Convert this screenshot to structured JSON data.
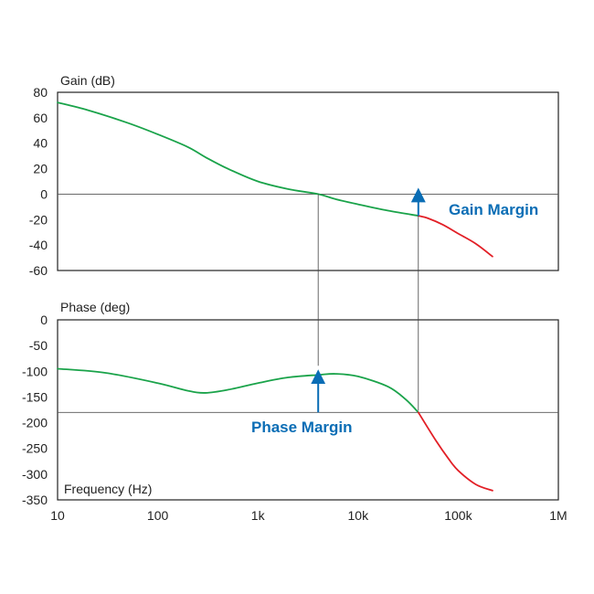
{
  "chart_data": [
    {
      "type": "line",
      "ylabel": "Gain (dB)",
      "xscale": "log",
      "xlim": [
        10,
        1000000
      ],
      "ylim": [
        -60,
        80
      ],
      "yticks": [
        80,
        60,
        40,
        20,
        0,
        -20,
        -40,
        -60
      ],
      "grid": false,
      "reference_line": 0,
      "series": [
        {
          "color": "#1aa34a",
          "points": [
            [
              10,
              72
            ],
            [
              20,
              66
            ],
            [
              50,
              56
            ],
            [
              100,
              47
            ],
            [
              200,
              37
            ],
            [
              300,
              29
            ],
            [
              500,
              20
            ],
            [
              1000,
              10
            ],
            [
              2000,
              4
            ],
            [
              4000,
              0
            ],
            [
              6000,
              -4
            ],
            [
              10000,
              -8
            ],
            [
              20000,
              -13
            ],
            [
              40000,
              -17
            ]
          ]
        },
        {
          "color": "#e21f26",
          "points": [
            [
              40000,
              -17
            ],
            [
              50000,
              -19
            ],
            [
              70000,
              -24
            ],
            [
              100000,
              -31
            ],
            [
              150000,
              -39
            ],
            [
              220000,
              -49
            ]
          ]
        }
      ],
      "annotations": [
        {
          "text": "Gain Margin",
          "color": "#0a6db5"
        }
      ]
    },
    {
      "type": "line",
      "ylabel": "Phase (deg)",
      "xlabel": "Frequency (Hz)",
      "xscale": "log",
      "xlim": [
        10,
        1000000
      ],
      "ylim": [
        -350,
        0
      ],
      "yticks": [
        0,
        -50,
        -100,
        -150,
        -200,
        -250,
        -300,
        -350
      ],
      "xticks": [
        10,
        100,
        1000,
        10000,
        100000,
        1000000
      ],
      "xticklabels": [
        "10",
        "100",
        "1k",
        "10k",
        "100k",
        "1M"
      ],
      "grid": false,
      "reference_line": -180,
      "series": [
        {
          "color": "#1aa34a",
          "points": [
            [
              10,
              -95
            ],
            [
              30,
              -103
            ],
            [
              100,
              -123
            ],
            [
              200,
              -138
            ],
            [
              300,
              -142
            ],
            [
              500,
              -136
            ],
            [
              1000,
              -123
            ],
            [
              2000,
              -112
            ],
            [
              4000,
              -107
            ],
            [
              6000,
              -105
            ],
            [
              10000,
              -110
            ],
            [
              20000,
              -130
            ],
            [
              30000,
              -155
            ],
            [
              40000,
              -180
            ]
          ]
        },
        {
          "color": "#e21f26",
          "points": [
            [
              40000,
              -180
            ],
            [
              60000,
              -235
            ],
            [
              80000,
              -270
            ],
            [
              100000,
              -293
            ],
            [
              150000,
              -320
            ],
            [
              220000,
              -332
            ]
          ]
        }
      ],
      "annotations": [
        {
          "text": "Phase Margin",
          "color": "#0a6db5"
        }
      ]
    }
  ]
}
